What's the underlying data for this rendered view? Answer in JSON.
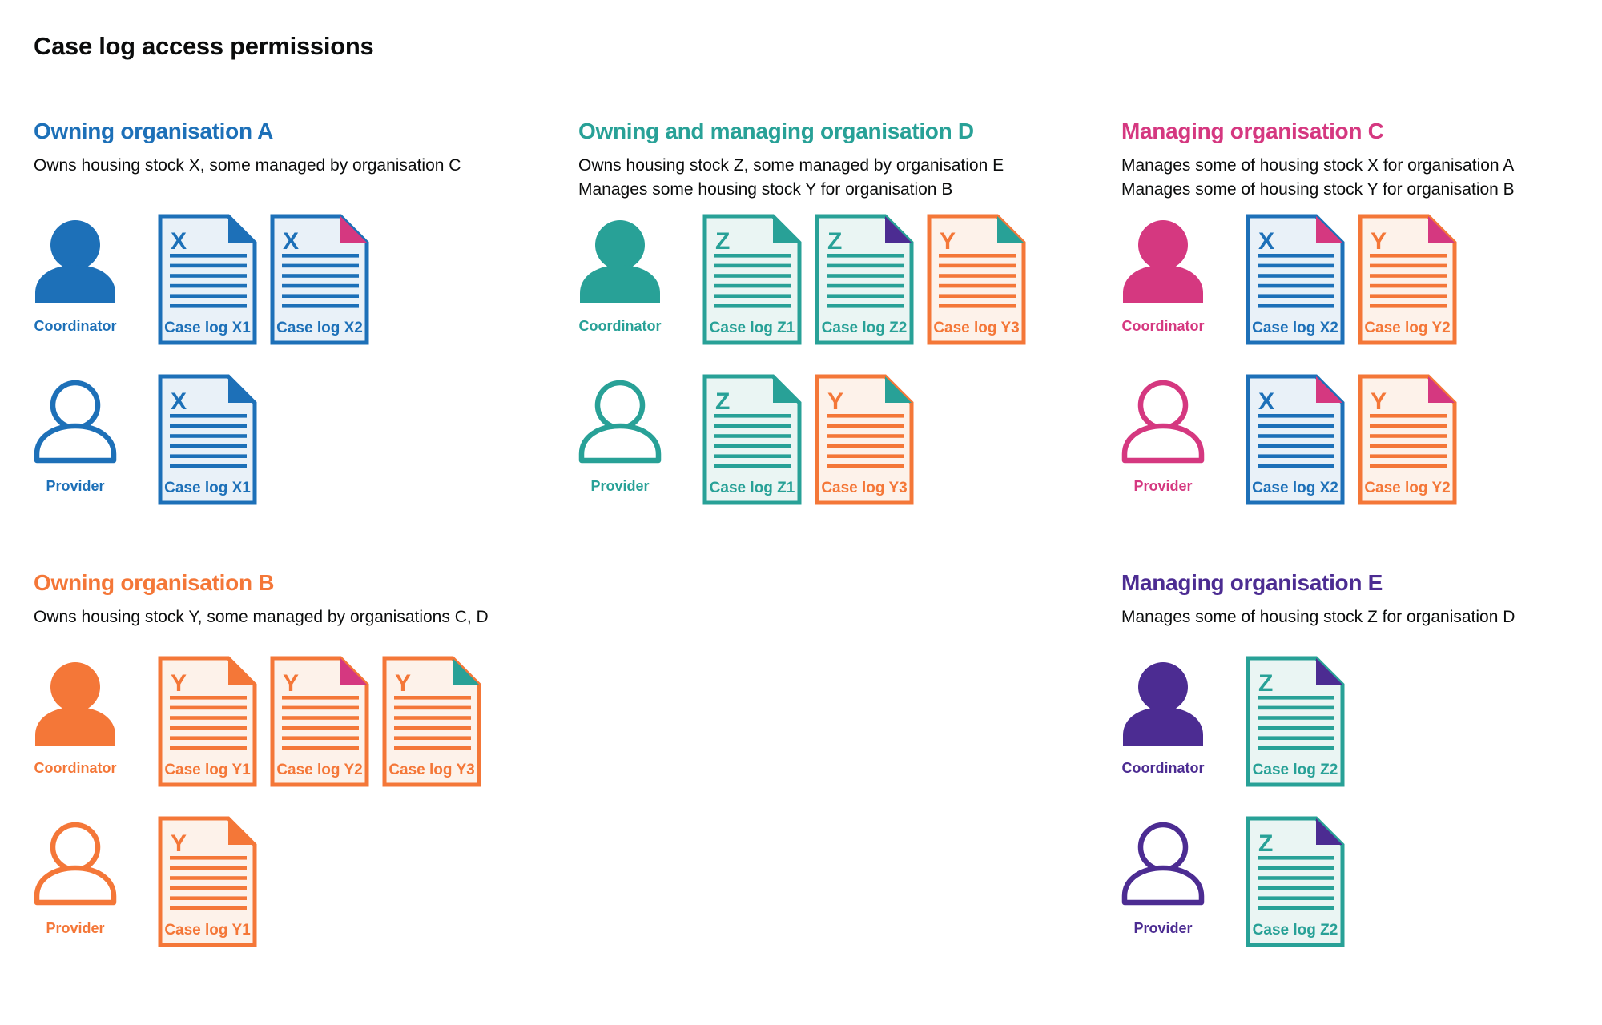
{
  "page_title": "Case log access permissions",
  "colors": {
    "blue": "#1d70b8",
    "teal": "#28a197",
    "orange": "#f47738",
    "pink": "#d53880",
    "purple": "#4c2c92",
    "text": "#0b0c0c",
    "blue_tint": "#e9f1f8",
    "teal_tint": "#eaf5f3",
    "orange_tint": "#fdf2ea"
  },
  "sections": [
    {
      "id": "owning-organisation-a",
      "heading": "Owning organisation A",
      "color": "blue",
      "description_lines": [
        "Owns housing stock X, some managed by organisation C"
      ],
      "rows": [
        {
          "role": "Coordinator",
          "icon": "person-filled-icon",
          "docs": [
            {
              "letter": "X",
              "label": "Case log X1",
              "color": "blue",
              "fold": "blue"
            },
            {
              "letter": "X",
              "label": "Case log X2",
              "color": "blue",
              "fold": "pink"
            }
          ]
        },
        {
          "role": "Provider",
          "icon": "person-outline-icon",
          "docs": [
            {
              "letter": "X",
              "label": "Case log X1",
              "color": "blue",
              "fold": "blue"
            }
          ]
        }
      ]
    },
    {
      "id": "owning-and-managing-organisation-d",
      "heading": "Owning and managing organisation D",
      "color": "teal",
      "description_lines": [
        "Owns housing stock Z, some managed by organisation E",
        "Manages some housing stock Y for organisation B"
      ],
      "rows": [
        {
          "role": "Coordinator",
          "icon": "person-filled-icon",
          "docs": [
            {
              "letter": "Z",
              "label": "Case log Z1",
              "color": "teal",
              "fold": "teal"
            },
            {
              "letter": "Z",
              "label": "Case log Z2",
              "color": "teal",
              "fold": "purple"
            },
            {
              "letter": "Y",
              "label": "Case log Y3",
              "color": "orange",
              "fold": "teal"
            }
          ]
        },
        {
          "role": "Provider",
          "icon": "person-outline-icon",
          "docs": [
            {
              "letter": "Z",
              "label": "Case log Z1",
              "color": "teal",
              "fold": "teal"
            },
            {
              "letter": "Y",
              "label": "Case log Y3",
              "color": "orange",
              "fold": "teal"
            }
          ]
        }
      ]
    },
    {
      "id": "managing-organisation-c",
      "heading": "Managing organisation C",
      "color": "pink",
      "description_lines": [
        "Manages some of housing stock X for organisation A",
        "Manages some of housing stock Y for organisation B"
      ],
      "rows": [
        {
          "role": "Coordinator",
          "icon": "person-filled-icon",
          "docs": [
            {
              "letter": "X",
              "label": "Case log X2",
              "color": "blue",
              "fold": "pink"
            },
            {
              "letter": "Y",
              "label": "Case log Y2",
              "color": "orange",
              "fold": "pink"
            }
          ]
        },
        {
          "role": "Provider",
          "icon": "person-outline-icon",
          "docs": [
            {
              "letter": "X",
              "label": "Case log X2",
              "color": "blue",
              "fold": "pink"
            },
            {
              "letter": "Y",
              "label": "Case log Y2",
              "color": "orange",
              "fold": "pink"
            }
          ]
        }
      ]
    },
    {
      "id": "owning-organisation-b",
      "heading": "Owning organisation B",
      "color": "orange",
      "description_lines": [
        "Owns housing stock Y, some managed by organisations C, D"
      ],
      "rows": [
        {
          "role": "Coordinator",
          "icon": "person-filled-icon",
          "docs": [
            {
              "letter": "Y",
              "label": "Case log Y1",
              "color": "orange",
              "fold": "orange"
            },
            {
              "letter": "Y",
              "label": "Case log Y2",
              "color": "orange",
              "fold": "pink"
            },
            {
              "letter": "Y",
              "label": "Case log Y3",
              "color": "orange",
              "fold": "teal"
            }
          ]
        },
        {
          "role": "Provider",
          "icon": "person-outline-icon",
          "docs": [
            {
              "letter": "Y",
              "label": "Case log Y1",
              "color": "orange",
              "fold": "orange"
            }
          ]
        }
      ]
    },
    {
      "id": "managing-organisation-e",
      "heading": "Managing organisation E",
      "color": "purple",
      "description_lines": [
        "Manages some of housing stock Z for organisation D"
      ],
      "rows": [
        {
          "role": "Coordinator",
          "icon": "person-filled-icon",
          "docs": [
            {
              "letter": "Z",
              "label": "Case log Z2",
              "color": "teal",
              "fold": "purple"
            }
          ]
        },
        {
          "role": "Provider",
          "icon": "person-outline-icon",
          "docs": [
            {
              "letter": "Z",
              "label": "Case log Z2",
              "color": "teal",
              "fold": "purple"
            }
          ]
        }
      ]
    }
  ]
}
